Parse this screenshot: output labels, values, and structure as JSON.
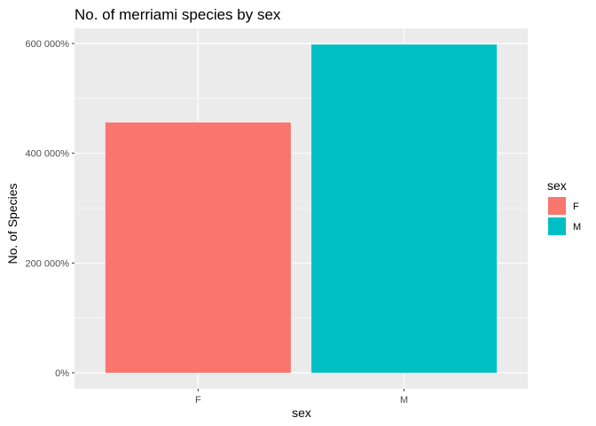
{
  "chart_data": {
    "type": "bar",
    "title": "No. of merriami species by sex",
    "xlabel": "sex",
    "ylabel": "No. of Species",
    "categories": [
      "F",
      "M"
    ],
    "values": [
      4560,
      5980
    ],
    "colors": [
      "#F8766D",
      "#00BFC4"
    ],
    "ylim": [
      0,
      6250
    ],
    "yticks": [
      0,
      2000,
      4000,
      6000
    ],
    "ytick_labels": [
      "0%",
      "200 000%",
      "400 000%",
      "600 000%"
    ],
    "grid": true,
    "legend": {
      "title": "sex",
      "placement": "right",
      "entries": [
        {
          "label": "F",
          "color": "#F8766D"
        },
        {
          "label": "M",
          "color": "#00BFC4"
        }
      ]
    },
    "panel_background": "#EBEBEB",
    "grid_color": "#FFFFFF"
  }
}
